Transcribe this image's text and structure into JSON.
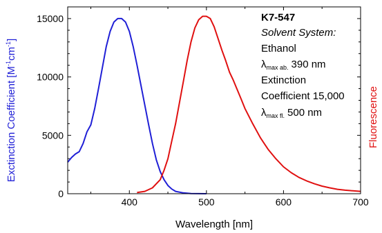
{
  "chart_data": {
    "type": "line",
    "xlabel": "Wavelength [nm]",
    "ylabel_left": {
      "prefix": "Exctinction Coefficient [M",
      "sup1": "-1",
      "mid": "cm",
      "sup2": "-1",
      "suffix": "]"
    },
    "ylabel_right": "Fluorescence",
    "xlim": [
      320,
      700
    ],
    "ylim": [
      0,
      16000
    ],
    "x_ticks": [
      400,
      500,
      600,
      700
    ],
    "y_ticks": [
      0,
      5000,
      10000,
      15000
    ],
    "x_tick_labels": [
      "400",
      "500",
      "600",
      "700"
    ],
    "y_tick_labels": [
      "0",
      "5000",
      "10000",
      "15000"
    ],
    "grid": false,
    "series": [
      {
        "axis": "left",
        "color": "#1f1fd6",
        "x": [
          320,
          325,
          330,
          335,
          340,
          345,
          350,
          355,
          360,
          365,
          370,
          375,
          380,
          385,
          390,
          395,
          400,
          405,
          410,
          415,
          420,
          425,
          430,
          435,
          440,
          445,
          450,
          455,
          460,
          470,
          480,
          490,
          500
        ],
        "y": [
          2700,
          3100,
          3400,
          3600,
          4300,
          5300,
          5900,
          7300,
          9000,
          10800,
          12600,
          13900,
          14700,
          15000,
          15000,
          14700,
          13900,
          12600,
          11000,
          9300,
          7600,
          5900,
          4300,
          2900,
          1900,
          1200,
          700,
          400,
          200,
          70,
          20,
          5,
          0
        ]
      },
      {
        "axis": "right",
        "color": "#e01010",
        "x": [
          410,
          420,
          430,
          440,
          445,
          450,
          455,
          460,
          465,
          470,
          475,
          480,
          485,
          490,
          495,
          500,
          505,
          510,
          515,
          520,
          525,
          530,
          535,
          540,
          545,
          550,
          560,
          570,
          580,
          590,
          600,
          610,
          620,
          630,
          640,
          650,
          660,
          670,
          680,
          690,
          700
        ],
        "y": [
          100,
          200,
          500,
          1200,
          2000,
          3000,
          4500,
          6000,
          7800,
          9600,
          11400,
          13000,
          14200,
          14900,
          15200,
          15200,
          15000,
          14300,
          13300,
          12300,
          11400,
          10400,
          9700,
          8900,
          8100,
          7300,
          6000,
          4800,
          3800,
          3000,
          2300,
          1800,
          1400,
          1100,
          850,
          650,
          500,
          380,
          300,
          250,
          200
        ]
      }
    ],
    "annotation": {
      "title": "K7-547",
      "solvent_label": "Solvent System:",
      "solvent": "Ethanol",
      "lambda_abs_symbol": "λ",
      "lambda_abs_sub": "max ab.",
      "lambda_abs_value": "390 nm",
      "extinction_line1": "Extinction",
      "extinction_line2": "Coefficient 15,000",
      "lambda_fl_symbol": "λ",
      "lambda_fl_sub": "max fl.",
      "lambda_fl_value": "500 nm"
    }
  }
}
